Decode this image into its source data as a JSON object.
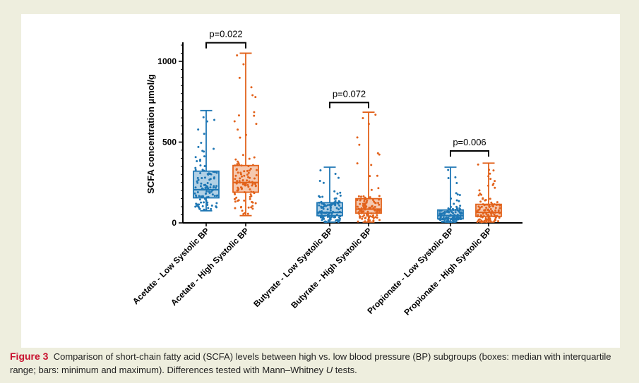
{
  "chart_data": {
    "type": "box",
    "ylabel": "SCFA concentration µmol/g",
    "ylim": [
      0,
      1100
    ],
    "yticks": [
      0,
      500,
      1000
    ],
    "grid": false,
    "colors": {
      "low": "#1f77b4",
      "high": "#e2621b"
    },
    "groups": [
      {
        "label": "Acetate - Low Systolic BP",
        "color_key": "low",
        "min": 75,
        "q1": 155,
        "median": 205,
        "q3": 320,
        "max": 695
      },
      {
        "label": "Acetate - High Systolic BP",
        "color_key": "high",
        "min": 45,
        "q1": 190,
        "median": 250,
        "q3": 355,
        "max": 1050
      },
      {
        "label": "Butyrate - Low Systolic BP",
        "color_key": "low",
        "min": 5,
        "q1": 45,
        "median": 65,
        "q3": 125,
        "max": 345
      },
      {
        "label": "Butyrate - High Systolic BP",
        "color_key": "high",
        "min": 5,
        "q1": 60,
        "median": 85,
        "q3": 150,
        "max": 685
      },
      {
        "label": "Propionate - Low Systolic BP",
        "color_key": "low",
        "min": 5,
        "q1": 25,
        "median": 45,
        "q3": 80,
        "max": 345
      },
      {
        "label": "Propionate - High Systolic BP",
        "color_key": "high",
        "min": 5,
        "q1": 40,
        "median": 65,
        "q3": 115,
        "max": 370
      }
    ],
    "comparisons": [
      {
        "pair": [
          0,
          1
        ],
        "label": "p=0.022",
        "bracket_y": 1115
      },
      {
        "pair": [
          2,
          3
        ],
        "label": "p=0.072",
        "bracket_y": 745
      },
      {
        "pair": [
          4,
          5
        ],
        "label": "p=0.006",
        "bracket_y": 445
      }
    ]
  },
  "caption": {
    "figure_label": "Figure 3",
    "text_before_u": "Comparison of short-chain fatty acid (SCFA) levels between high vs. low blood pressure (BP) subgroups (boxes: median with interquartile range; bars: minimum and maximum). Differences tested with Mann–Whitney ",
    "u_symbol": "U",
    "text_after_u": " tests."
  }
}
